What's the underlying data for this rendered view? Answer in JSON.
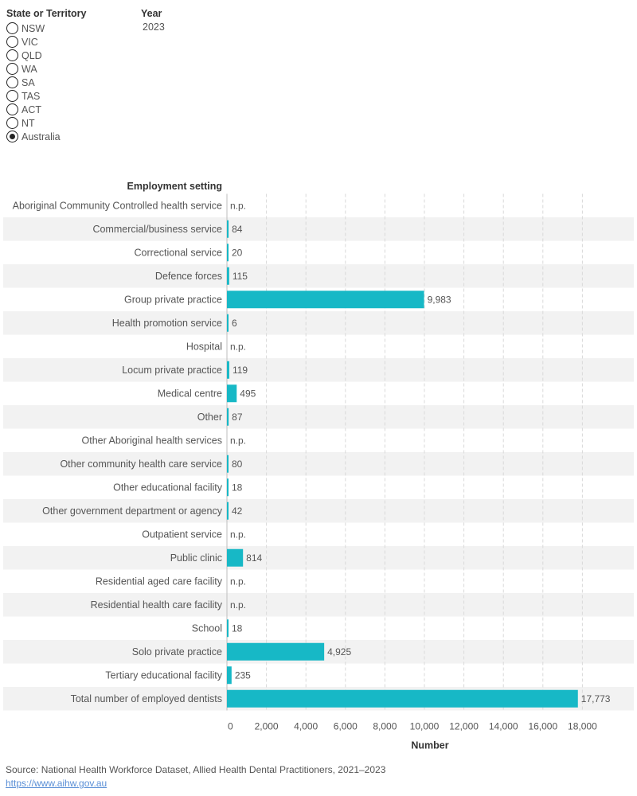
{
  "filters": {
    "state_title": "State or Territory",
    "year_title": "Year",
    "year_value": "2023",
    "options": [
      {
        "label": "NSW",
        "checked": false
      },
      {
        "label": "VIC",
        "checked": false
      },
      {
        "label": "QLD",
        "checked": false
      },
      {
        "label": "WA",
        "checked": false
      },
      {
        "label": "SA",
        "checked": false
      },
      {
        "label": "TAS",
        "checked": false
      },
      {
        "label": "ACT",
        "checked": false
      },
      {
        "label": "NT",
        "checked": false
      },
      {
        "label": "Australia",
        "checked": true
      }
    ]
  },
  "colors": {
    "bar": "#17b8c6",
    "band": "#f2f2f2",
    "grid": "#d9d9d9",
    "text": "#555555",
    "link": "#5a8fd6"
  },
  "chart_data": {
    "type": "bar",
    "orientation": "horizontal",
    "row_header": "Employment setting",
    "xlabel": "Number",
    "xlim": [
      0,
      18000
    ],
    "xticks": [
      0,
      2000,
      4000,
      6000,
      8000,
      10000,
      12000,
      14000,
      16000,
      18000
    ],
    "xtick_labels": [
      "0",
      "2,000",
      "4,000",
      "6,000",
      "8,000",
      "10,000",
      "12,000",
      "14,000",
      "16,000",
      "18,000"
    ],
    "grid": true,
    "categories": [
      "Aboriginal Community Controlled health service",
      "Commercial/business service",
      "Correctional service",
      "Defence forces",
      "Group private practice",
      "Health promotion service",
      "Hospital",
      "Locum private practice",
      "Medical centre",
      "Other",
      "Other Aboriginal health services",
      "Other community health care service",
      "Other educational facility",
      "Other government department or agency",
      "Outpatient service",
      "Public clinic",
      "Residential aged care facility",
      "Residential health care facility",
      "School",
      "Solo private practice",
      "Tertiary educational facility",
      "Total number of employed dentists"
    ],
    "values": [
      null,
      84,
      20,
      115,
      9983,
      6,
      null,
      119,
      495,
      87,
      null,
      80,
      18,
      42,
      null,
      814,
      null,
      null,
      18,
      4925,
      235,
      17773
    ],
    "value_labels": [
      "n.p.",
      "84",
      "20",
      "115",
      "9,983",
      "6",
      "n.p.",
      "119",
      "495",
      "87",
      "n.p.",
      "80",
      "18",
      "42",
      "n.p.",
      "814",
      "n.p.",
      "n.p.",
      "18",
      "4,925",
      "235",
      "17,773"
    ]
  },
  "source": {
    "text": "Source: National Health Workforce Dataset, Allied Health Dental Practitioners, 2021–2023",
    "link": "https://www.aihw.gov.au"
  }
}
